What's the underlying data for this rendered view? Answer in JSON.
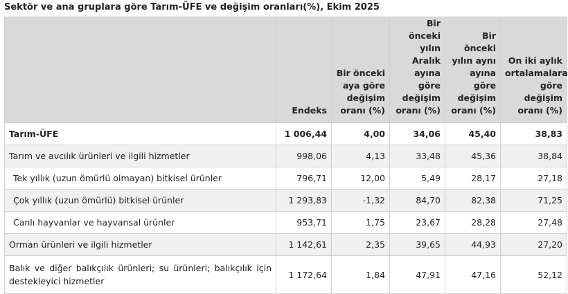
{
  "title": "Sektör ve ana gruplara göre Tarım-ÜFE ve değişim oranları(%), Ekim 2025",
  "table": {
    "header": [
      "",
      "Endeks",
      "Bir önceki aya göre değişim oranı (%)",
      "Bir önceki yılın Aralık ayına göre değişim oranı (%)",
      "Bir önceki yılın aynı ayına göre değişim oranı (%)",
      "On iki aylık ortalamalara göre değişim oranı (%)"
    ],
    "rows": [
      [
        "Tarım-ÜFE",
        "1 006,44",
        "4,00",
        "34,06",
        "45,40",
        "38,83"
      ],
      [
        "Tarım ve avcılık ürünleri ve ilgili hizmetler",
        "998,06",
        "4,13",
        "33,48",
        "45,36",
        "38,84"
      ],
      [
        "Tek yıllık (uzun ömürlü olmayan) bitkisel ürünler",
        "796,71",
        "12,00",
        "5,49",
        "28,17",
        "27,18"
      ],
      [
        "Çok yıllık (uzun ömürlü) bitkisel ürünler",
        "1 293,83",
        "-1,32",
        "84,70",
        "82,38",
        "71,25"
      ],
      [
        "Canlı hayvanlar ve hayvansal ürünler",
        "953,71",
        "1,75",
        "23,67",
        "28,28",
        "27,48"
      ],
      [
        "Orman ürünleri ve ilgili hizmetler",
        "1 142,61",
        "2,35",
        "39,65",
        "44,93",
        "27,20"
      ],
      [
        "Balık ve diğer balıkçılık ürünleri; su ürünleri; balıkçılık için destekleyici hizmetler",
        "1 172,64",
        "1,84",
        "47,91",
        "47,16",
        "52,12"
      ]
    ]
  }
}
